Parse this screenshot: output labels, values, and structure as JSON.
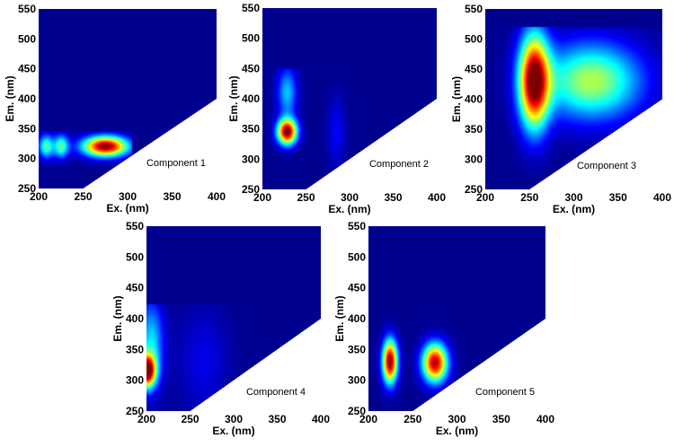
{
  "figure": {
    "background_color": "#00008f",
    "colormap": [
      "#00008f",
      "#0000ff",
      "#0080ff",
      "#00ffff",
      "#80ff80",
      "#ffff00",
      "#ff8000",
      "#ff0000",
      "#800000"
    ]
  },
  "chart_data": [
    {
      "type": "heatmap",
      "title": "Component 1",
      "xlabel": "Ex. (nm)",
      "ylabel": "Em. (nm)",
      "xlim": [
        200,
        400
      ],
      "ylim": [
        250,
        550
      ],
      "xticks": [
        200,
        250,
        300,
        350,
        400
      ],
      "yticks": [
        250,
        300,
        350,
        400,
        450,
        500,
        550
      ],
      "scatter_mask_line": [
        [
          250,
          250
        ],
        [
          400,
          400
        ]
      ],
      "peaks": [
        {
          "ex": 275,
          "em": 320,
          "intensity": 1.0,
          "sx": 18,
          "sy": 12
        },
        {
          "ex": 225,
          "em": 320,
          "intensity": 0.45,
          "sx": 6,
          "sy": 14
        },
        {
          "ex": 208,
          "em": 320,
          "intensity": 0.45,
          "sx": 6,
          "sy": 14
        }
      ],
      "em_cutoff": 345,
      "ex_cutoff": 305
    },
    {
      "type": "heatmap",
      "title": "Component 2",
      "xlabel": "Ex. (nm)",
      "ylabel": "Em. (nm)",
      "xlim": [
        200,
        400
      ],
      "ylim": [
        250,
        550
      ],
      "xticks": [
        200,
        250,
        300,
        350,
        400
      ],
      "yticks": [
        250,
        300,
        350,
        400,
        450,
        500,
        550
      ],
      "scatter_mask_line": [
        [
          250,
          250
        ],
        [
          400,
          400
        ]
      ],
      "peaks": [
        {
          "ex": 228,
          "em": 345,
          "intensity": 1.0,
          "sx": 8,
          "sy": 15
        },
        {
          "ex": 228,
          "em": 410,
          "intensity": 0.32,
          "sx": 8,
          "sy": 30
        },
        {
          "ex": 285,
          "em": 345,
          "intensity": 0.12,
          "sx": 7,
          "sy": 40
        }
      ],
      "em_cutoff": 450,
      "ex_cutoff": 400
    },
    {
      "type": "heatmap",
      "title": "Component 3",
      "xlabel": "Ex. (nm)",
      "ylabel": "Em. (nm)",
      "xlim": [
        200,
        400
      ],
      "ylim": [
        250,
        550
      ],
      "xticks": [
        200,
        250,
        300,
        350,
        400
      ],
      "yticks": [
        250,
        300,
        350,
        400,
        450,
        500,
        550
      ],
      "scatter_mask_line": [
        [
          250,
          250
        ],
        [
          400,
          400
        ]
      ],
      "peaks": [
        {
          "ex": 255,
          "em": 430,
          "intensity": 1.0,
          "sx": 12,
          "sy": 55
        },
        {
          "ex": 320,
          "em": 430,
          "intensity": 0.55,
          "sx": 40,
          "sy": 45
        }
      ],
      "em_cutoff": 520,
      "ex_cutoff": 400
    },
    {
      "type": "heatmap",
      "title": "Component 4",
      "xlabel": "Ex. (nm)",
      "ylabel": "Em. (nm)",
      "xlim": [
        200,
        400
      ],
      "ylim": [
        250,
        550
      ],
      "xticks": [
        200,
        250,
        300,
        350,
        400
      ],
      "yticks": [
        250,
        300,
        350,
        400,
        450,
        500,
        550
      ],
      "scatter_mask_line": [
        [
          250,
          250
        ],
        [
          400,
          400
        ]
      ],
      "peaks": [
        {
          "ex": 200,
          "em": 315,
          "intensity": 1.0,
          "sx": 7,
          "sy": 18
        },
        {
          "ex": 205,
          "em": 360,
          "intensity": 0.35,
          "sx": 10,
          "sy": 50
        },
        {
          "ex": 265,
          "em": 330,
          "intensity": 0.1,
          "sx": 20,
          "sy": 60
        }
      ],
      "em_cutoff": 423,
      "ex_cutoff": 400
    },
    {
      "type": "heatmap",
      "title": "Component 5",
      "xlabel": "Ex. (nm)",
      "ylabel": "Em. (nm)",
      "xlim": [
        200,
        400
      ],
      "ylim": [
        250,
        550
      ],
      "xticks": [
        200,
        250,
        300,
        350,
        400
      ],
      "yticks": [
        250,
        300,
        350,
        400,
        450,
        500,
        550
      ],
      "scatter_mask_line": [
        [
          250,
          250
        ],
        [
          400,
          400
        ]
      ],
      "peaks": [
        {
          "ex": 224,
          "em": 330,
          "intensity": 1.0,
          "sx": 6,
          "sy": 25
        },
        {
          "ex": 275,
          "em": 328,
          "intensity": 0.95,
          "sx": 10,
          "sy": 22
        }
      ],
      "em_cutoff": 430,
      "ex_cutoff": 400
    }
  ]
}
